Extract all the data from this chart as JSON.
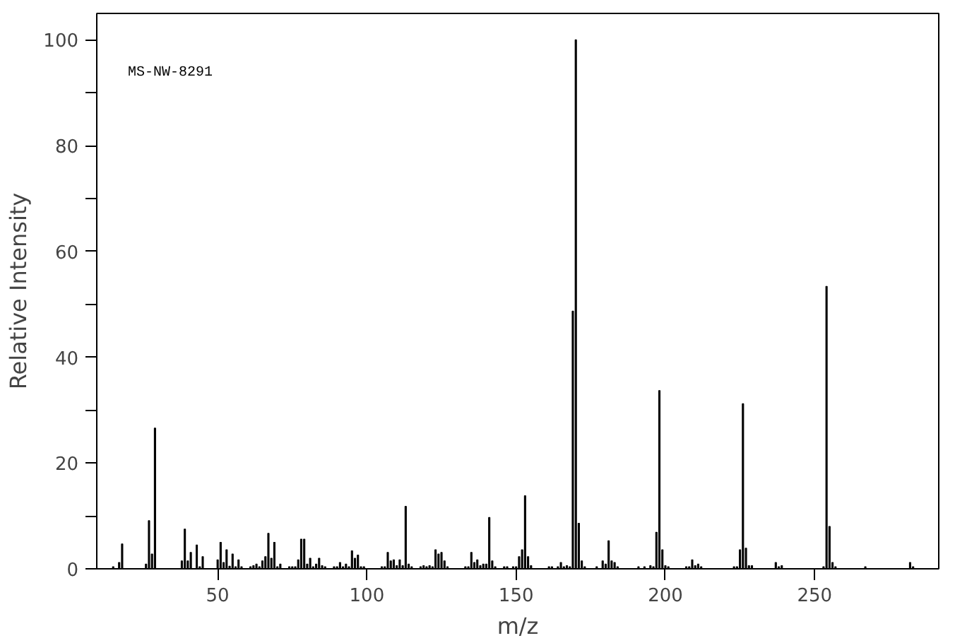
{
  "chart_data": {
    "type": "bar",
    "xlabel": "m/z",
    "ylabel": "Relative Intensity",
    "annotations": [
      "MS-NW-8291"
    ],
    "x": [
      15,
      17,
      18,
      26,
      27,
      28,
      29,
      38,
      39,
      40,
      41,
      43,
      44,
      45,
      50,
      51,
      52,
      53,
      54,
      55,
      56,
      57,
      58,
      61,
      62,
      63,
      64,
      65,
      66,
      67,
      68,
      69,
      70,
      71,
      74,
      75,
      76,
      77,
      78,
      79,
      80,
      81,
      82,
      83,
      84,
      85,
      86,
      89,
      90,
      91,
      92,
      93,
      94,
      95,
      96,
      97,
      98,
      99,
      105,
      106,
      107,
      108,
      109,
      110,
      111,
      112,
      113,
      114,
      115,
      118,
      119,
      120,
      121,
      122,
      123,
      124,
      125,
      126,
      127,
      133,
      134,
      135,
      136,
      137,
      138,
      139,
      140,
      141,
      142,
      143,
      146,
      147,
      149,
      150,
      151,
      152,
      153,
      154,
      155,
      161,
      162,
      164,
      165,
      166,
      167,
      168,
      169,
      170,
      171,
      172,
      173,
      177,
      179,
      180,
      181,
      182,
      183,
      184,
      191,
      193,
      195,
      196,
      197,
      198,
      199,
      200,
      201,
      207,
      208,
      209,
      210,
      211,
      212,
      223,
      224,
      225,
      226,
      227,
      228,
      229,
      237,
      238,
      239,
      253,
      254,
      255,
      256,
      257,
      267,
      282,
      283
    ],
    "values": [
      0.4,
      1.2,
      4.7,
      0.9,
      9.1,
      2.8,
      26.6,
      1.5,
      7.5,
      1.5,
      3.1,
      4.5,
      0.4,
      2.3,
      1.7,
      5.0,
      1.2,
      3.6,
      0.5,
      2.8,
      0.4,
      1.7,
      0.4,
      0.4,
      0.6,
      0.9,
      0.4,
      1.5,
      2.3,
      6.7,
      2.0,
      5.0,
      0.4,
      0.9,
      0.4,
      0.4,
      0.4,
      1.7,
      5.6,
      5.6,
      0.9,
      2.0,
      0.4,
      0.9,
      2.0,
      0.6,
      0.4,
      0.4,
      0.4,
      1.2,
      0.4,
      0.9,
      0.4,
      3.4,
      2.0,
      2.6,
      0.4,
      0.4,
      0.4,
      0.4,
      3.1,
      1.5,
      1.7,
      0.6,
      1.7,
      0.6,
      11.8,
      0.9,
      0.4,
      0.4,
      0.6,
      0.4,
      0.6,
      0.4,
      3.6,
      2.8,
      3.1,
      1.5,
      0.4,
      0.4,
      0.4,
      3.1,
      1.2,
      1.7,
      0.6,
      0.9,
      0.9,
      9.7,
      1.5,
      0.4,
      0.4,
      0.4,
      0.4,
      0.4,
      2.3,
      3.6,
      13.8,
      2.3,
      0.6,
      0.4,
      0.4,
      0.4,
      1.2,
      0.4,
      0.6,
      0.4,
      48.7,
      100,
      8.6,
      1.5,
      0.4,
      0.4,
      1.5,
      0.9,
      5.3,
      1.5,
      1.2,
      0.4,
      0.4,
      0.4,
      0.6,
      0.4,
      6.9,
      33.7,
      3.6,
      0.6,
      0.4,
      0.4,
      0.4,
      1.7,
      0.6,
      0.9,
      0.4,
      0.4,
      0.4,
      3.6,
      31.2,
      3.9,
      0.6,
      0.6,
      1.2,
      0.4,
      0.6,
      0.4,
      53.4,
      8.0,
      1.2,
      0.4,
      0.4,
      1.2,
      0.4
    ],
    "color": "#000000",
    "xlim": [
      9.5,
      291.6
    ],
    "xticks": [
      50,
      100,
      150,
      200,
      250
    ],
    "ylim": [
      0,
      105
    ],
    "yticks": [
      0,
      {
        "value": 10,
        "label": null
      },
      20,
      {
        "value": 30,
        "label": null
      },
      40,
      {
        "value": 50,
        "label": null
      },
      60,
      {
        "value": 70,
        "label": null
      },
      80,
      {
        "value": 90,
        "label": null
      },
      100
    ],
    "grid": false
  }
}
